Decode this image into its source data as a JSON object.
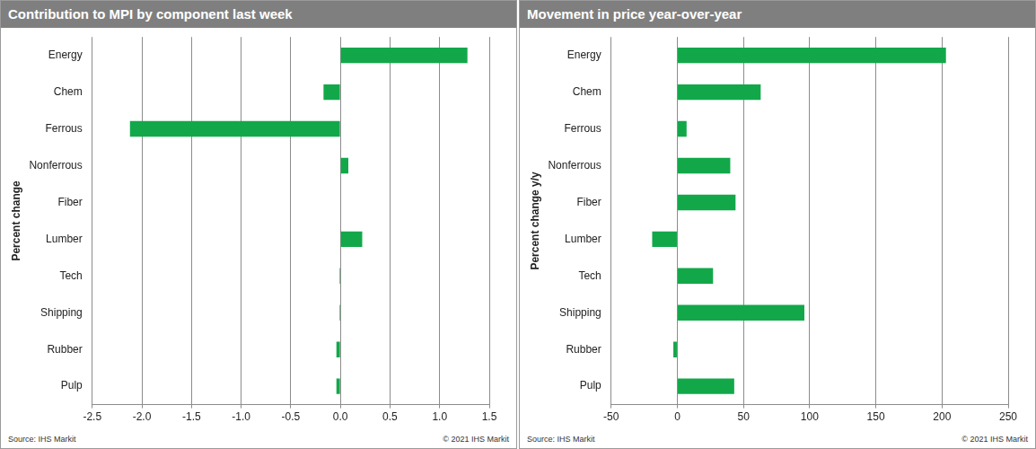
{
  "chart_data": [
    {
      "type": "bar",
      "orientation": "horizontal",
      "title": "Contribution to MPI by component last week",
      "ylabel": "Percent change",
      "categories": [
        "Energy",
        "Chem",
        "Ferrous",
        "Nonferrous",
        "Fiber",
        "Lumber",
        "Tech",
        "Shipping",
        "Rubber",
        "Pulp"
      ],
      "values": [
        1.28,
        -0.17,
        -2.12,
        0.08,
        0,
        0.22,
        -0.01,
        -0.01,
        -0.04,
        -0.04
      ],
      "color": "#12a84a",
      "xlim": [
        -2.5,
        1.5
      ],
      "xticks": [
        -2.5,
        {
          "value": -2,
          "label": "-2.0"
        },
        -1.5,
        {
          "value": -1,
          "label": "-1.0"
        },
        -0.5,
        {
          "value": 0,
          "label": "0.0"
        },
        0.5,
        {
          "value": 1,
          "label": "1.0"
        },
        1.5
      ],
      "grid": true,
      "legend": false,
      "annotations": [
        "Source: IHS Markit",
        "© 2021 IHS Markit"
      ]
    },
    {
      "type": "bar",
      "orientation": "horizontal",
      "title": "Movement in price year-over-year",
      "ylabel": "Percent change y/y",
      "categories": [
        "Energy",
        "Chem",
        "Ferrous",
        "Nonferrous",
        "Fiber",
        "Lumber",
        "Tech",
        "Shipping",
        "Rubber",
        "Pulp"
      ],
      "values": [
        203,
        63,
        7,
        40,
        44,
        -19,
        27,
        96,
        -3,
        43
      ],
      "color": "#12a84a",
      "xlim": [
        -50,
        250
      ],
      "xticks": [
        -50,
        0,
        50,
        100,
        150,
        200,
        250
      ],
      "grid": true,
      "legend": false,
      "annotations": [
        "Source: IHS Markit",
        "© 2021 IHS Markit"
      ]
    }
  ]
}
